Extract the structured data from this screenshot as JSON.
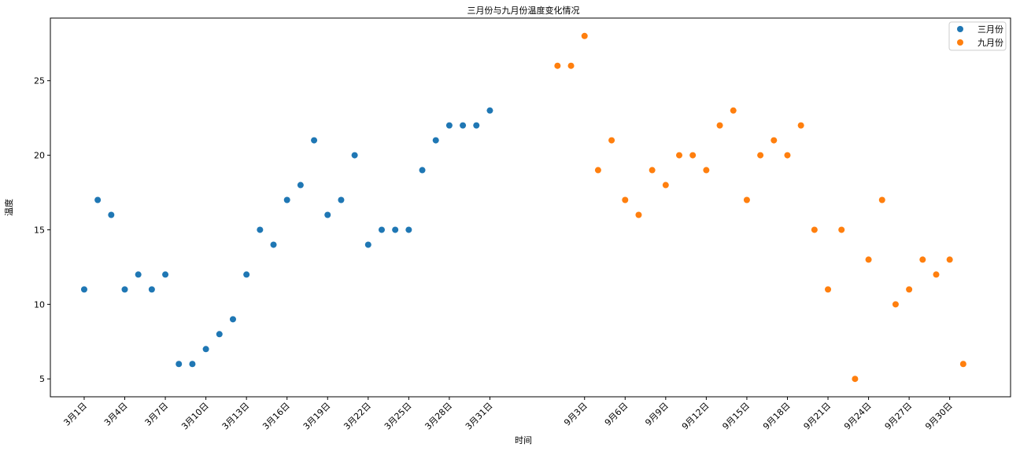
{
  "chart_data": {
    "type": "scatter",
    "title": "三月份与九月份温度变化情况",
    "xlabel": "时间",
    "ylabel": "温度",
    "ylim": [
      3.8,
      29.2
    ],
    "xlim": [
      -2.5,
      68.5
    ],
    "yticks": [
      5,
      10,
      15,
      20,
      25
    ],
    "xticks": [
      {
        "x": 0,
        "label": "3月1日"
      },
      {
        "x": 3,
        "label": "3月4日"
      },
      {
        "x": 6,
        "label": "3月7日"
      },
      {
        "x": 9,
        "label": "3月10日"
      },
      {
        "x": 12,
        "label": "3月13日"
      },
      {
        "x": 15,
        "label": "3月16日"
      },
      {
        "x": 18,
        "label": "3月19日"
      },
      {
        "x": 21,
        "label": "3月22日"
      },
      {
        "x": 24,
        "label": "3月25日"
      },
      {
        "x": 27,
        "label": "3月28日"
      },
      {
        "x": 30,
        "label": "3月31日"
      },
      {
        "x": 37,
        "label": "9月3日"
      },
      {
        "x": 40,
        "label": "9月6日"
      },
      {
        "x": 43,
        "label": "9月9日"
      },
      {
        "x": 46,
        "label": "9月12日"
      },
      {
        "x": 49,
        "label": "9月15日"
      },
      {
        "x": 52,
        "label": "9月18日"
      },
      {
        "x": 55,
        "label": "9月21日"
      },
      {
        "x": 58,
        "label": "9月24日"
      },
      {
        "x": 61,
        "label": "9月27日"
      },
      {
        "x": 64,
        "label": "9月30日"
      }
    ],
    "legend_position": "top-right",
    "series": [
      {
        "name": "三月份",
        "color": "#1f77b4",
        "x": [
          0,
          1,
          2,
          3,
          4,
          5,
          6,
          7,
          8,
          9,
          10,
          11,
          12,
          13,
          14,
          15,
          16,
          17,
          18,
          19,
          20,
          21,
          22,
          23,
          24,
          25,
          26,
          27,
          28,
          29,
          30
        ],
        "y": [
          11,
          17,
          16,
          11,
          12,
          11,
          12,
          6,
          6,
          7,
          8,
          9,
          12,
          15,
          14,
          17,
          18,
          21,
          16,
          17,
          20,
          14,
          15,
          15,
          15,
          19,
          21,
          22,
          22,
          22,
          23
        ]
      },
      {
        "name": "九月份",
        "color": "#ff7f0e",
        "x": [
          35,
          36,
          37,
          38,
          39,
          40,
          41,
          42,
          43,
          44,
          45,
          46,
          47,
          48,
          49,
          50,
          51,
          52,
          53,
          54,
          55,
          56,
          57,
          58,
          59,
          60,
          61,
          62,
          63,
          64,
          65
        ],
        "y": [
          26,
          26,
          28,
          19,
          21,
          17,
          16,
          19,
          18,
          20,
          20,
          19,
          22,
          23,
          17,
          20,
          21,
          20,
          22,
          15,
          11,
          15,
          5,
          13,
          17,
          10,
          11,
          13,
          12,
          13,
          6
        ]
      }
    ]
  }
}
